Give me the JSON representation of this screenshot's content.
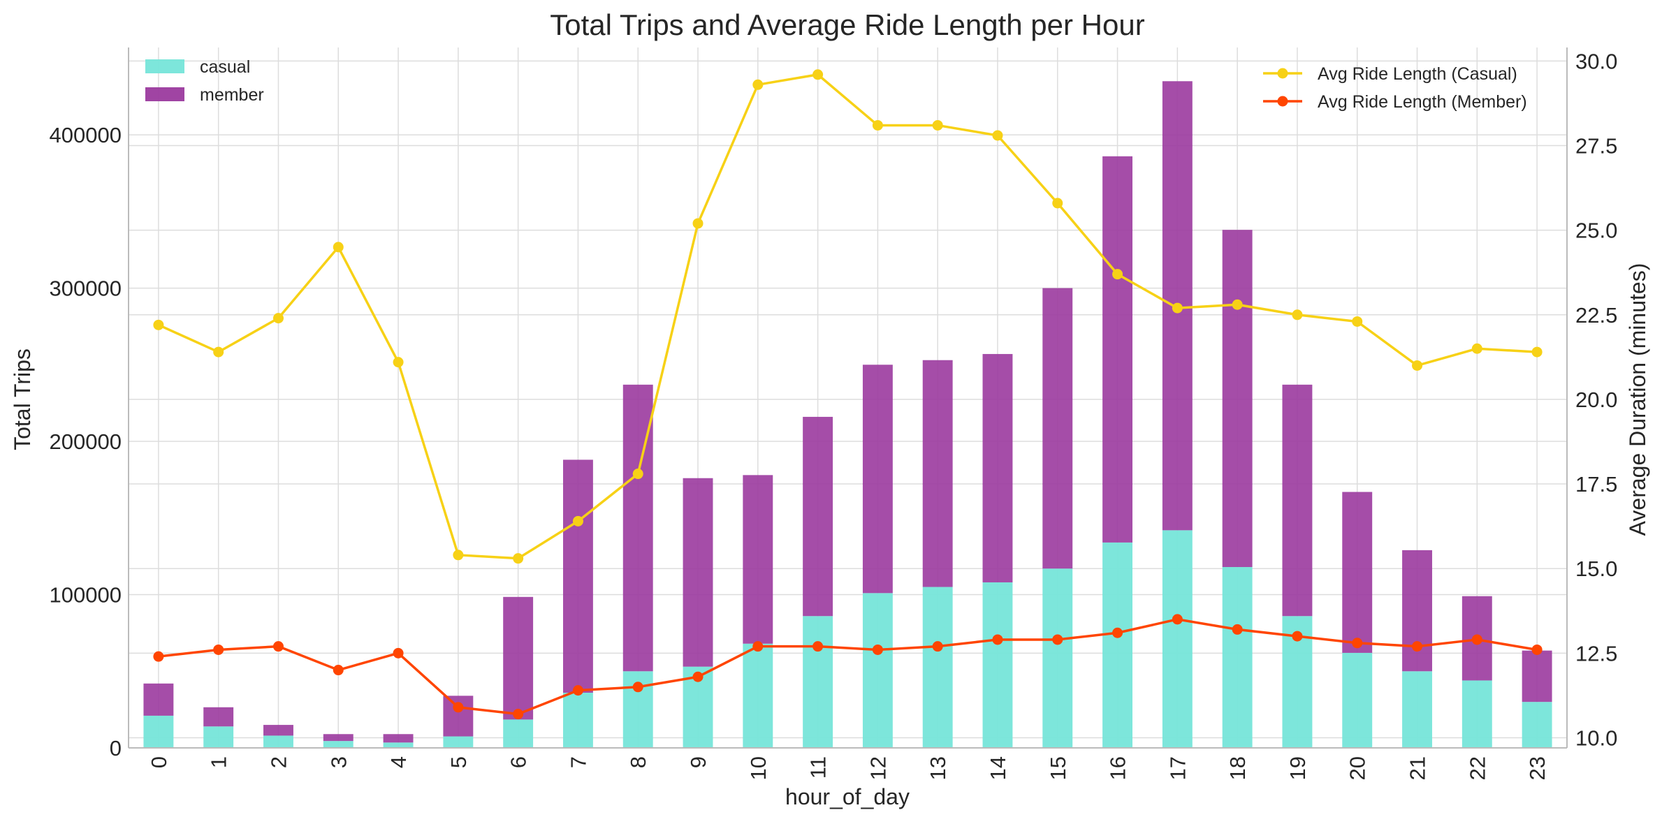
{
  "chart_data": {
    "type": "bar",
    "title": "Total Trips and Average Ride Length per Hour",
    "xlabel": "hour_of_day",
    "ylabel": "Total Trips",
    "y2label": "Average Duration (minutes)",
    "categories": [
      "0",
      "1",
      "2",
      "3",
      "4",
      "5",
      "6",
      "7",
      "8",
      "9",
      "10",
      "11",
      "12",
      "13",
      "14",
      "15",
      "16",
      "17",
      "18",
      "19",
      "20",
      "21",
      "22",
      "23"
    ],
    "ylim": [
      0,
      457000
    ],
    "y_ticks": [
      "0",
      "100000",
      "200000",
      "300000",
      "400000"
    ],
    "y_tick_values": [
      0,
      100000,
      200000,
      300000,
      400000
    ],
    "y2lim": [
      9.7,
      30.4
    ],
    "y2_ticks": [
      "10.0",
      "12.5",
      "15.0",
      "17.5",
      "20.0",
      "22.5",
      "25.0",
      "27.5",
      "30.0"
    ],
    "y2_tick_values": [
      10.0,
      12.5,
      15.0,
      17.5,
      20.0,
      22.5,
      25.0,
      27.5,
      30.0
    ],
    "grid": true,
    "stacked": true,
    "series": [
      {
        "name": "casual",
        "color": "#76e5d9",
        "values": [
          21000,
          14000,
          8000,
          4500,
          3500,
          7500,
          18500,
          36000,
          50000,
          53000,
          68000,
          86000,
          101000,
          105000,
          108000,
          117000,
          134000,
          142000,
          118000,
          86000,
          62000,
          50000,
          44000,
          30000
        ]
      },
      {
        "name": "member",
        "color": "#9b3a9e",
        "values": [
          21000,
          12500,
          7000,
          4500,
          5500,
          26500,
          80000,
          152000,
          187000,
          123000,
          110000,
          130000,
          149000,
          148000,
          149000,
          183000,
          252000,
          293000,
          220000,
          151000,
          105000,
          79000,
          55000,
          33500
        ]
      }
    ],
    "line_series": [
      {
        "name": "Avg Ride Length (Casual)",
        "color": "#f7d116",
        "axis": "right",
        "values": [
          22.2,
          21.4,
          22.4,
          24.5,
          21.1,
          15.4,
          15.3,
          16.4,
          17.8,
          25.2,
          29.3,
          29.6,
          28.1,
          28.1,
          27.8,
          25.8,
          23.7,
          22.7,
          22.8,
          22.5,
          22.3,
          21.0,
          21.5,
          21.4
        ]
      },
      {
        "name": "Avg Ride Length (Member)",
        "color": "#ff4500",
        "axis": "right",
        "values": [
          12.4,
          12.6,
          12.7,
          12.0,
          12.5,
          10.9,
          10.7,
          11.4,
          11.5,
          11.8,
          12.7,
          12.7,
          12.6,
          12.7,
          12.9,
          12.9,
          13.1,
          13.5,
          13.2,
          13.0,
          12.8,
          12.7,
          12.9,
          12.6
        ]
      }
    ],
    "legend_left": "top-left",
    "legend_right": "top-right"
  }
}
